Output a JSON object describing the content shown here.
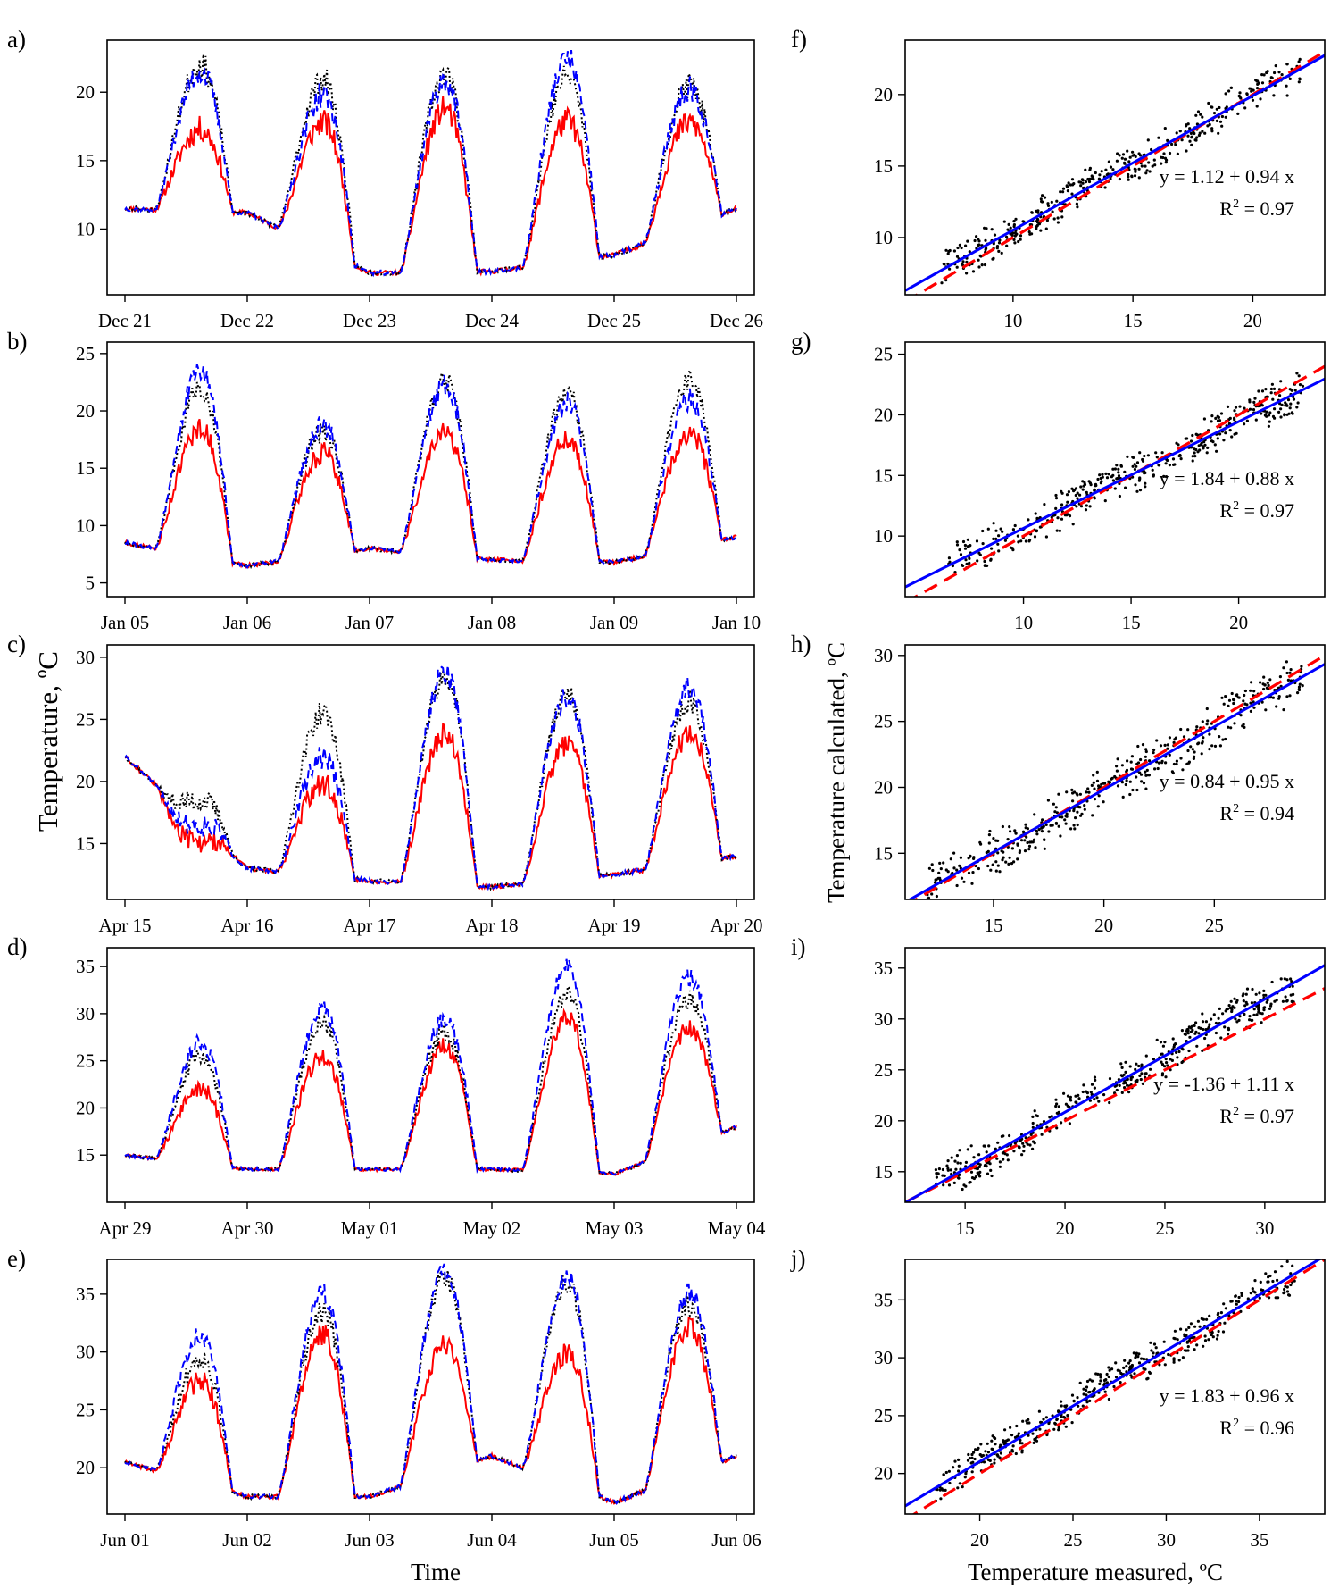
{
  "labels": {
    "time_axis": "Time",
    "y_axis_left": "Temperature, ºC",
    "y_axis_right": "Temperature calculated, ºC",
    "x_axis_right": "Temperature measured, ºC"
  },
  "colors": {
    "series_a": "#ff0000",
    "series_b": "#0000ff",
    "series_c": "#000000",
    "fit": "#0000ff",
    "identity": "#ff0000"
  },
  "chart_data": [
    {
      "type": "line",
      "panel": "a)",
      "x_ticks": [
        "Dec 21",
        "Dec 22",
        "Dec 23",
        "Dec 24",
        "Dec 25",
        "Dec 26"
      ],
      "ylim": [
        5.2,
        23.8
      ],
      "y_ticks": [
        10,
        15,
        20
      ],
      "profile": {
        "nights": [
          11.5,
          11.2,
          6.8,
          6.9,
          8.1,
          11.5
        ],
        "red": [
          17.3,
          17.8,
          18.8,
          17.9,
          17.8
        ],
        "blue": [
          21.5,
          19.8,
          20.9,
          22.4,
          20.3
        ],
        "black": [
          22.0,
          20.9,
          21.3,
          21.2,
          20.5
        ]
      }
    },
    {
      "type": "line",
      "panel": "b)",
      "x_ticks": [
        "Jan 05",
        "Jan 06",
        "Jan 07",
        "Jan 08",
        "Jan 09",
        "Jan 10"
      ],
      "ylim": [
        3.8,
        26.0
      ],
      "y_ticks": [
        5,
        10,
        15,
        20,
        25
      ],
      "profile": {
        "nights": [
          8.5,
          6.5,
          8.0,
          7.0,
          6.8,
          9.0
        ],
        "red": [
          18.5,
          16.3,
          18.0,
          17.5,
          18.0
        ],
        "blue": [
          23.5,
          18.7,
          22.3,
          20.6,
          21.0
        ],
        "black": [
          22.0,
          18.2,
          22.6,
          21.4,
          22.8
        ]
      }
    },
    {
      "type": "line",
      "panel": "c)",
      "x_ticks": [
        "Apr 15",
        "Apr 16",
        "Apr 17",
        "Apr 18",
        "Apr 19",
        "Apr 20"
      ],
      "ylim": [
        10.5,
        31.0
      ],
      "y_ticks": [
        15,
        20,
        25,
        30
      ],
      "profile": {
        "nights": [
          22.0,
          13.0,
          12.0,
          11.5,
          12.5,
          14.0
        ],
        "red": [
          15.0,
          19.8,
          23.8,
          23.0,
          23.8
        ],
        "blue": [
          16.5,
          22.0,
          28.8,
          26.8,
          27.5
        ],
        "black": [
          18.5,
          25.5,
          28.5,
          26.9,
          26.5
        ]
      }
    },
    {
      "type": "line",
      "panel": "d)",
      "x_ticks": [
        "Apr 29",
        "Apr 30",
        "May 01",
        "May 02",
        "May 03",
        "May 04"
      ],
      "ylim": [
        10.0,
        37.0
      ],
      "y_ticks": [
        15,
        20,
        25,
        30,
        35
      ],
      "profile": {
        "nights": [
          15.0,
          13.5,
          13.5,
          13.5,
          13.0,
          18.0
        ],
        "red": [
          22.0,
          25.5,
          26.5,
          29.5,
          28.5
        ],
        "blue": [
          27.0,
          30.5,
          29.5,
          35.0,
          33.8
        ],
        "black": [
          25.5,
          29.0,
          28.0,
          32.0,
          31.5
        ]
      }
    },
    {
      "type": "line",
      "panel": "e)",
      "x_ticks": [
        "Jun 01",
        "Jun 02",
        "Jun 03",
        "Jun 04",
        "Jun 05",
        "Jun 06"
      ],
      "ylim": [
        16.0,
        38.0
      ],
      "y_ticks": [
        20,
        25,
        30,
        35
      ],
      "profile": {
        "nights": [
          20.5,
          17.5,
          17.5,
          21.0,
          17.0,
          21.0
        ],
        "red": [
          27.5,
          31.5,
          30.5,
          30.0,
          32.0
        ],
        "blue": [
          31.5,
          35.0,
          37.0,
          36.5,
          35.0
        ],
        "black": [
          29.5,
          33.5,
          36.5,
          36.0,
          34.0
        ]
      }
    },
    {
      "type": "scatter",
      "panel": "f)",
      "xlim": [
        5.5,
        23.0
      ],
      "ylim": [
        6.0,
        23.8
      ],
      "x_ticks": [
        10,
        15,
        20
      ],
      "y_ticks": [
        10,
        15,
        20
      ],
      "fit": {
        "intercept": 1.12,
        "slope": 0.94
      },
      "cloud": {
        "x_range": [
          7,
          22
        ],
        "spread": 1.3
      },
      "equation": "y = 1.12 + 0.94 x",
      "r2_prefix": "R",
      "r2_sup": "2",
      "r2_value": " = 0.97"
    },
    {
      "type": "scatter",
      "panel": "g)",
      "xlim": [
        4.5,
        24.0
      ],
      "ylim": [
        5.0,
        26.0
      ],
      "x_ticks": [
        10,
        15,
        20
      ],
      "y_ticks": [
        10,
        15,
        20,
        25
      ],
      "fit": {
        "intercept": 1.84,
        "slope": 0.88
      },
      "cloud": {
        "x_range": [
          6.5,
          23
        ],
        "spread": 1.6
      },
      "equation": "y = 1.84 + 0.88 x",
      "r2_prefix": "R",
      "r2_sup": "2",
      "r2_value": " = 0.97"
    },
    {
      "type": "scatter",
      "panel": "h)",
      "xlim": [
        11.0,
        30.0
      ],
      "ylim": [
        11.5,
        30.8
      ],
      "x_ticks": [
        15,
        20,
        25
      ],
      "y_ticks": [
        15,
        20,
        25,
        30
      ],
      "fit": {
        "intercept": 0.84,
        "slope": 0.95
      },
      "cloud": {
        "x_range": [
          12,
          29
        ],
        "spread": 1.8
      },
      "equation": "y = 0.84 + 0.95 x",
      "r2_prefix": "R",
      "r2_sup": "2",
      "r2_value": " = 0.94"
    },
    {
      "type": "scatter",
      "panel": "i)",
      "xlim": [
        12.0,
        33.0
      ],
      "ylim": [
        12.0,
        37.0
      ],
      "x_ticks": [
        15,
        20,
        25,
        30
      ],
      "y_ticks": [
        15,
        20,
        25,
        30,
        35
      ],
      "fit": {
        "intercept": -1.36,
        "slope": 1.11
      },
      "cloud": {
        "x_range": [
          13.5,
          31.5
        ],
        "spread": 2.0
      },
      "equation": "y = -1.36 + 1.11 x",
      "r2_prefix": "R",
      "r2_sup": "2",
      "r2_value": " = 0.97"
    },
    {
      "type": "scatter",
      "panel": "j)",
      "xlim": [
        16.0,
        38.5
      ],
      "ylim": [
        16.5,
        38.5
      ],
      "x_ticks": [
        20,
        25,
        30,
        35
      ],
      "y_ticks": [
        20,
        25,
        30,
        35
      ],
      "fit": {
        "intercept": 1.83,
        "slope": 0.96
      },
      "cloud": {
        "x_range": [
          17.5,
          37
        ],
        "spread": 1.5
      },
      "equation": "y = 1.83 + 0.96 x",
      "r2_prefix": "R",
      "r2_sup": "2",
      "r2_value": " = 0.96"
    }
  ]
}
